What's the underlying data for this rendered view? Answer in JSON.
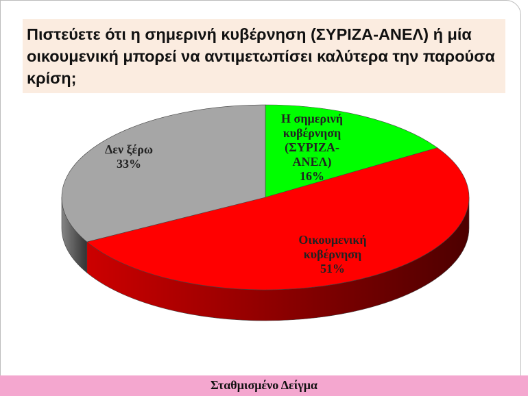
{
  "chart_data": {
    "type": "pie",
    "title": "Πιστεύετε ότι η σημερινή κυβέρνηση (ΣΥΡΙΖΑ-ΑΝΕΛ) ή μία οικουμενική μπορεί να αντιμετωπίσει καλύτερα την παρούσα κρίση;",
    "categories": [
      "Η σημερινή κυβέρνηση (ΣΥΡΙΖΑ-ΑΝΕΛ)",
      "Οικουμενική κυβέρνηση",
      "Δεν ξέρω"
    ],
    "values": [
      16,
      51,
      33
    ],
    "value_labels": [
      "16%",
      "51%",
      "33%"
    ],
    "colors": [
      "#00ff00",
      "#ff0000",
      "#a6a6a6"
    ],
    "footer": "Σταθμισμένο Δείγμα"
  }
}
